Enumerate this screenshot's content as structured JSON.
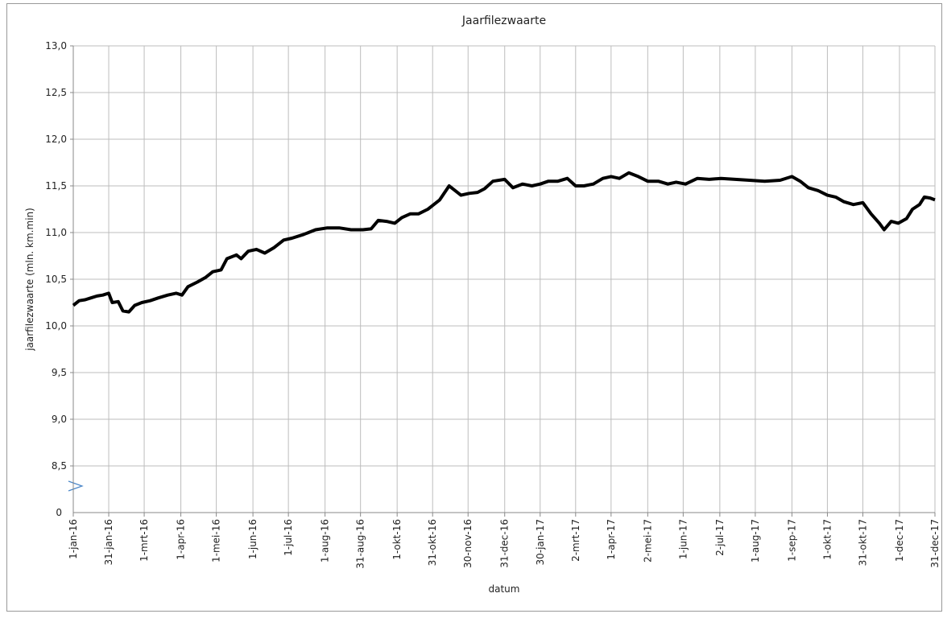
{
  "chart_data": {
    "type": "line",
    "title": "Jaarfilezwaarte",
    "x_label": "datum",
    "y_label": "jaarfilezwaarte (mln. km.min)",
    "color": "#000000",
    "grid": true,
    "xlim": [
      0,
      729
    ],
    "ylim": [
      8,
      13
    ],
    "y_break_label": "0",
    "yticks": [
      {
        "value": 8.5,
        "label": "8,5"
      },
      {
        "value": 9,
        "label": "9,0"
      },
      {
        "value": 9.5,
        "label": "9,5"
      },
      {
        "value": 10,
        "label": "10,0"
      },
      {
        "value": 10.5,
        "label": "10,5"
      },
      {
        "value": 11,
        "label": "11,0"
      },
      {
        "value": 11.5,
        "label": "11,5"
      },
      {
        "value": 12,
        "label": "12,0"
      },
      {
        "value": 12.5,
        "label": "12,5"
      },
      {
        "value": 13,
        "label": "13,0"
      }
    ],
    "xticks": [
      {
        "value": 0,
        "label": "1-jan-16"
      },
      {
        "value": 30,
        "label": "31-jan-16"
      },
      {
        "value": 60,
        "label": "1-mrt-16"
      },
      {
        "value": 91,
        "label": "1-apr-16"
      },
      {
        "value": 121,
        "label": "1-mei-16"
      },
      {
        "value": 152,
        "label": "1-jun-16"
      },
      {
        "value": 182,
        "label": "1-jul-16"
      },
      {
        "value": 213,
        "label": "1-aug-16"
      },
      {
        "value": 243,
        "label": "31-aug-16"
      },
      {
        "value": 274,
        "label": "1-okt-16"
      },
      {
        "value": 304,
        "label": "31-okt-16"
      },
      {
        "value": 334,
        "label": "30-nov-16"
      },
      {
        "value": 365,
        "label": "31-dec-16"
      },
      {
        "value": 395,
        "label": "30-jan-17"
      },
      {
        "value": 425,
        "label": "2-mrt-17"
      },
      {
        "value": 455,
        "label": "1-apr-17"
      },
      {
        "value": 486,
        "label": "2-mei-17"
      },
      {
        "value": 516,
        "label": "1-jun-17"
      },
      {
        "value": 547,
        "label": "2-jul-17"
      },
      {
        "value": 577,
        "label": "1-aug-17"
      },
      {
        "value": 608,
        "label": "1-sep-17"
      },
      {
        "value": 638,
        "label": "1-okt-17"
      },
      {
        "value": 668,
        "label": "31-okt-17"
      },
      {
        "value": 699,
        "label": "1-dec-17"
      },
      {
        "value": 729,
        "label": "31-dec-17"
      }
    ],
    "x": [
      0,
      5,
      10,
      15,
      20,
      25,
      30,
      33,
      38,
      42,
      47,
      52,
      58,
      65,
      72,
      80,
      87,
      92,
      97,
      105,
      112,
      118,
      125,
      130,
      138,
      142,
      148,
      155,
      162,
      170,
      178,
      185,
      195,
      205,
      215,
      225,
      235,
      245,
      252,
      258,
      265,
      272,
      278,
      285,
      292,
      300,
      305,
      310,
      318,
      323,
      328,
      335,
      342,
      348,
      355,
      365,
      372,
      380,
      388,
      395,
      402,
      410,
      418,
      425,
      432,
      440,
      448,
      455,
      462,
      470,
      478,
      486,
      495,
      503,
      510,
      518,
      528,
      538,
      548,
      560,
      572,
      585,
      598,
      608,
      615,
      622,
      630,
      638,
      645,
      652,
      660,
      668,
      675,
      682,
      686,
      692,
      698,
      705,
      710,
      716,
      720,
      725,
      729
    ],
    "values": [
      10.22,
      10.27,
      10.28,
      10.3,
      10.32,
      10.33,
      10.35,
      10.25,
      10.26,
      10.16,
      10.15,
      10.22,
      10.25,
      10.27,
      10.3,
      10.33,
      10.35,
      10.33,
      10.42,
      10.47,
      10.52,
      10.58,
      10.6,
      10.72,
      10.76,
      10.72,
      10.8,
      10.82,
      10.78,
      10.84,
      10.92,
      10.94,
      10.98,
      11.03,
      11.05,
      11.05,
      11.03,
      11.03,
      11.04,
      11.13,
      11.12,
      11.1,
      11.16,
      11.2,
      11.2,
      11.25,
      11.3,
      11.35,
      11.5,
      11.45,
      11.4,
      11.42,
      11.43,
      11.47,
      11.55,
      11.57,
      11.48,
      11.52,
      11.5,
      11.52,
      11.55,
      11.55,
      11.58,
      11.5,
      11.5,
      11.52,
      11.58,
      11.6,
      11.58,
      11.64,
      11.6,
      11.55,
      11.55,
      11.52,
      11.54,
      11.52,
      11.58,
      11.57,
      11.58,
      11.57,
      11.56,
      11.55,
      11.56,
      11.6,
      11.55,
      11.48,
      11.45,
      11.4,
      11.38,
      11.33,
      11.3,
      11.32,
      11.2,
      11.1,
      11.03,
      11.12,
      11.1,
      11.15,
      11.25,
      11.3,
      11.38,
      11.37,
      11.35
    ]
  }
}
